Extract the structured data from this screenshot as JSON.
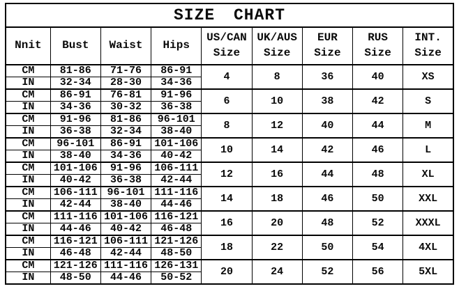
{
  "title": "SIZE CHART",
  "chart_data": {
    "type": "table",
    "title": "SIZE CHART",
    "columns": [
      "Nnit",
      "Bust",
      "Waist",
      "Hips",
      "US/CAN Size",
      "UK/AUS Size",
      "EUR Size",
      "RUS Size",
      "INT. Size"
    ],
    "header_labels": [
      "Nnit",
      "Bust",
      "Waist",
      "Hips",
      "US/CAN\nSize",
      "UK/AUS\nSize",
      "EUR\nSize",
      "RUS\nSize",
      "INT.\nSize"
    ],
    "unit_labels": {
      "cm": "CM",
      "in": "IN"
    },
    "bands": [
      {
        "cm": {
          "bust": "81-86",
          "waist": "71-76",
          "hips": "86-91"
        },
        "in": {
          "bust": "32-34",
          "waist": "28-30",
          "hips": "34-36"
        },
        "us_can": "4",
        "uk_aus": "8",
        "eur": "36",
        "rus": "40",
        "int_size": "XS"
      },
      {
        "cm": {
          "bust": "86-91",
          "waist": "76-81",
          "hips": "91-96"
        },
        "in": {
          "bust": "34-36",
          "waist": "30-32",
          "hips": "36-38"
        },
        "us_can": "6",
        "uk_aus": "10",
        "eur": "38",
        "rus": "42",
        "int_size": "S"
      },
      {
        "cm": {
          "bust": "91-96",
          "waist": "81-86",
          "hips": "96-101"
        },
        "in": {
          "bust": "36-38",
          "waist": "32-34",
          "hips": "38-40"
        },
        "us_can": "8",
        "uk_aus": "12",
        "eur": "40",
        "rus": "44",
        "int_size": "M"
      },
      {
        "cm": {
          "bust": "96-101",
          "waist": "86-91",
          "hips": "101-106"
        },
        "in": {
          "bust": "38-40",
          "waist": "34-36",
          "hips": "40-42"
        },
        "us_can": "10",
        "uk_aus": "14",
        "eur": "42",
        "rus": "46",
        "int_size": "L"
      },
      {
        "cm": {
          "bust": "101-106",
          "waist": "91-96",
          "hips": "106-111"
        },
        "in": {
          "bust": "40-42",
          "waist": "36-38",
          "hips": "42-44"
        },
        "us_can": "12",
        "uk_aus": "16",
        "eur": "44",
        "rus": "48",
        "int_size": "XL"
      },
      {
        "cm": {
          "bust": "106-111",
          "waist": "96-101",
          "hips": "111-116"
        },
        "in": {
          "bust": "42-44",
          "waist": "38-40",
          "hips": "44-46"
        },
        "us_can": "14",
        "uk_aus": "18",
        "eur": "46",
        "rus": "50",
        "int_size": "XXL"
      },
      {
        "cm": {
          "bust": "111-116",
          "waist": "101-106",
          "hips": "116-121"
        },
        "in": {
          "bust": "44-46",
          "waist": "40-42",
          "hips": "46-48"
        },
        "us_can": "16",
        "uk_aus": "20",
        "eur": "48",
        "rus": "52",
        "int_size": "XXXL"
      },
      {
        "cm": {
          "bust": "116-121",
          "waist": "106-111",
          "hips": "121-126"
        },
        "in": {
          "bust": "46-48",
          "waist": "42-44",
          "hips": "48-50"
        },
        "us_can": "18",
        "uk_aus": "22",
        "eur": "50",
        "rus": "54",
        "int_size": "4XL"
      },
      {
        "cm": {
          "bust": "121-126",
          "waist": "111-116",
          "hips": "126-131"
        },
        "in": {
          "bust": "48-50",
          "waist": "44-46",
          "hips": "50-52"
        },
        "us_can": "20",
        "uk_aus": "24",
        "eur": "52",
        "rus": "56",
        "int_size": "5XL"
      }
    ],
    "colors": {
      "text": "#0a0a0a",
      "border": "#000000",
      "background": "#ffffff"
    },
    "layout": {
      "grid": "on",
      "title_position": "top-center"
    }
  }
}
